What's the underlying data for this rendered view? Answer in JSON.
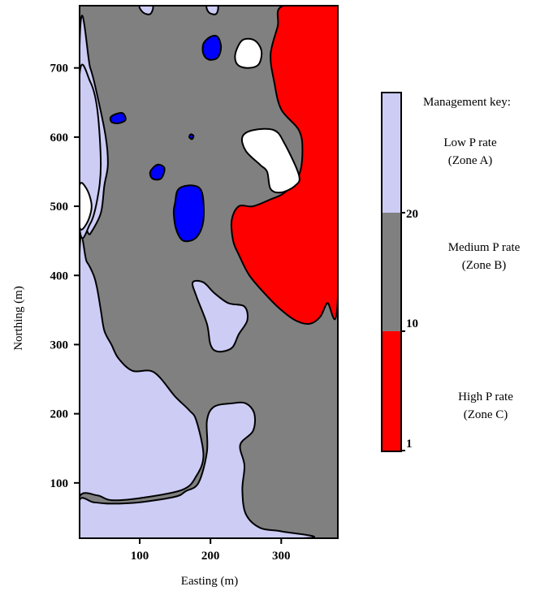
{
  "chart_data": {
    "type": "heatmap",
    "title": "",
    "xlabel": "Easting (m)",
    "ylabel": "Northing (m)",
    "xlim": [
      15,
      380
    ],
    "ylim": [
      20,
      790
    ],
    "x_ticks": [
      100,
      200,
      300
    ],
    "y_ticks": [
      100,
      200,
      300,
      400,
      500,
      600,
      700
    ],
    "legend": {
      "title": "Management key:",
      "placement": "right",
      "zones": [
        {
          "line1": "Low P rate",
          "line2": "(Zone A)",
          "color": "#ccccf5"
        },
        {
          "line1": "Medium P rate",
          "line2": "(Zone B)",
          "color": "#808080"
        },
        {
          "line1": "High P rate",
          "line2": "(Zone C)",
          "color": "#ff0000"
        }
      ],
      "breaks": [
        "20",
        "10",
        "1"
      ]
    },
    "colors": {
      "low": "#ccccf5",
      "medium": "#808080",
      "high": "#ff0000",
      "very_low": "#0000ff",
      "none": "#ffffff"
    },
    "regions": [
      {
        "zone": "low",
        "points": [
          [
            15,
            20
          ],
          [
            15,
            80
          ],
          [
            40,
            82
          ],
          [
            60,
            75
          ],
          [
            100,
            78
          ],
          [
            160,
            90
          ],
          [
            180,
            110
          ],
          [
            190,
            140
          ],
          [
            180,
            190
          ],
          [
            170,
            205
          ],
          [
            150,
            225
          ],
          [
            120,
            260
          ],
          [
            90,
            262
          ],
          [
            70,
            280
          ],
          [
            60,
            300
          ],
          [
            50,
            320
          ],
          [
            45,
            350
          ],
          [
            40,
            380
          ],
          [
            35,
            400
          ],
          [
            25,
            420
          ],
          [
            15,
            430
          ]
        ]
      },
      {
        "zone": "low",
        "points": [
          [
            15,
            20
          ],
          [
            330,
            20
          ],
          [
            300,
            30
          ],
          [
            270,
            35
          ],
          [
            250,
            55
          ],
          [
            245,
            90
          ],
          [
            248,
            125
          ],
          [
            242,
            155
          ],
          [
            260,
            175
          ],
          [
            262,
            200
          ],
          [
            250,
            215
          ],
          [
            230,
            215
          ],
          [
            205,
            210
          ],
          [
            195,
            190
          ],
          [
            195,
            145
          ],
          [
            183,
            100
          ],
          [
            165,
            88
          ],
          [
            150,
            80
          ],
          [
            100,
            72
          ],
          [
            60,
            70
          ],
          [
            35,
            72
          ],
          [
            15,
            75
          ]
        ]
      },
      {
        "zone": "low",
        "points": [
          [
            15,
            20
          ],
          [
            15,
            440
          ],
          [
            30,
            460
          ],
          [
            45,
            490
          ],
          [
            50,
            530
          ],
          [
            55,
            560
          ],
          [
            52,
            600
          ],
          [
            40,
            660
          ],
          [
            30,
            700
          ],
          [
            15,
            730
          ]
        ]
      },
      {
        "zone": "low",
        "points": [
          [
            100,
            790
          ],
          [
            105,
            780
          ],
          [
            115,
            778
          ],
          [
            118,
            790
          ]
        ]
      },
      {
        "zone": "low",
        "points": [
          [
            195,
            790
          ],
          [
            198,
            780
          ],
          [
            208,
            778
          ],
          [
            210,
            790
          ]
        ]
      },
      {
        "zone": "low",
        "points": [
          [
            15,
            470
          ],
          [
            30,
            475
          ],
          [
            40,
            510
          ],
          [
            45,
            560
          ],
          [
            40,
            640
          ],
          [
            30,
            680
          ],
          [
            15,
            690
          ]
        ]
      },
      {
        "zone": "low",
        "points": [
          [
            190,
            390
          ],
          [
            205,
            375
          ],
          [
            225,
            360
          ],
          [
            248,
            355
          ],
          [
            252,
            335
          ],
          [
            240,
            315
          ],
          [
            230,
            295
          ],
          [
            210,
            290
          ],
          [
            200,
            300
          ],
          [
            195,
            330
          ],
          [
            180,
            370
          ],
          [
            175,
            390
          ]
        ]
      },
      {
        "zone": "high",
        "points": [
          [
            303,
            790
          ],
          [
            380,
            790
          ],
          [
            380,
            370
          ],
          [
            365,
            360
          ],
          [
            355,
            340
          ],
          [
            340,
            330
          ],
          [
            320,
            335
          ],
          [
            300,
            350
          ],
          [
            280,
            370
          ],
          [
            255,
            400
          ],
          [
            240,
            430
          ],
          [
            232,
            450
          ],
          [
            230,
            480
          ],
          [
            240,
            500
          ],
          [
            260,
            500
          ],
          [
            285,
            510
          ],
          [
            305,
            520
          ],
          [
            325,
            545
          ],
          [
            330,
            580
          ],
          [
            325,
            610
          ],
          [
            300,
            640
          ],
          [
            290,
            680
          ],
          [
            285,
            720
          ],
          [
            295,
            760
          ]
        ]
      },
      {
        "zone": "none",
        "points": [
          [
            245,
            600
          ],
          [
            260,
            610
          ],
          [
            290,
            610
          ],
          [
            305,
            590
          ],
          [
            325,
            545
          ],
          [
            320,
            530
          ],
          [
            300,
            520
          ],
          [
            285,
            525
          ],
          [
            280,
            550
          ],
          [
            270,
            560
          ],
          [
            250,
            580
          ]
        ]
      },
      {
        "zone": "none",
        "points": [
          [
            235,
            720
          ],
          [
            245,
            740
          ],
          [
            262,
            740
          ],
          [
            272,
            725
          ],
          [
            268,
            705
          ],
          [
            252,
            700
          ],
          [
            238,
            705
          ]
        ]
      },
      {
        "zone": "none",
        "points": [
          [
            15,
            470
          ],
          [
            25,
            475
          ],
          [
            32,
            500
          ],
          [
            25,
            525
          ],
          [
            15,
            530
          ]
        ]
      },
      {
        "zone": "very_low",
        "points": [
          [
            150,
            505
          ],
          [
            155,
            525
          ],
          [
            175,
            530
          ],
          [
            188,
            520
          ],
          [
            190,
            480
          ],
          [
            180,
            455
          ],
          [
            162,
            450
          ],
          [
            152,
            465
          ],
          [
            148,
            490
          ]
        ]
      },
      {
        "zone": "very_low",
        "points": [
          [
            190,
            735
          ],
          [
            200,
            745
          ],
          [
            210,
            745
          ],
          [
            215,
            730
          ],
          [
            210,
            715
          ],
          [
            198,
            712
          ],
          [
            190,
            720
          ]
        ]
      },
      {
        "zone": "very_low",
        "points": [
          [
            115,
            550
          ],
          [
            125,
            560
          ],
          [
            135,
            555
          ],
          [
            130,
            540
          ],
          [
            118,
            540
          ]
        ]
      },
      {
        "zone": "very_low",
        "points": [
          [
            60,
            630
          ],
          [
            75,
            635
          ],
          [
            80,
            625
          ],
          [
            70,
            620
          ],
          [
            60,
            622
          ]
        ]
      },
      {
        "zone": "very_low",
        "points": [
          [
            170,
            600
          ],
          [
            172,
            604
          ],
          [
            176,
            602
          ],
          [
            174,
            597
          ]
        ]
      }
    ]
  }
}
